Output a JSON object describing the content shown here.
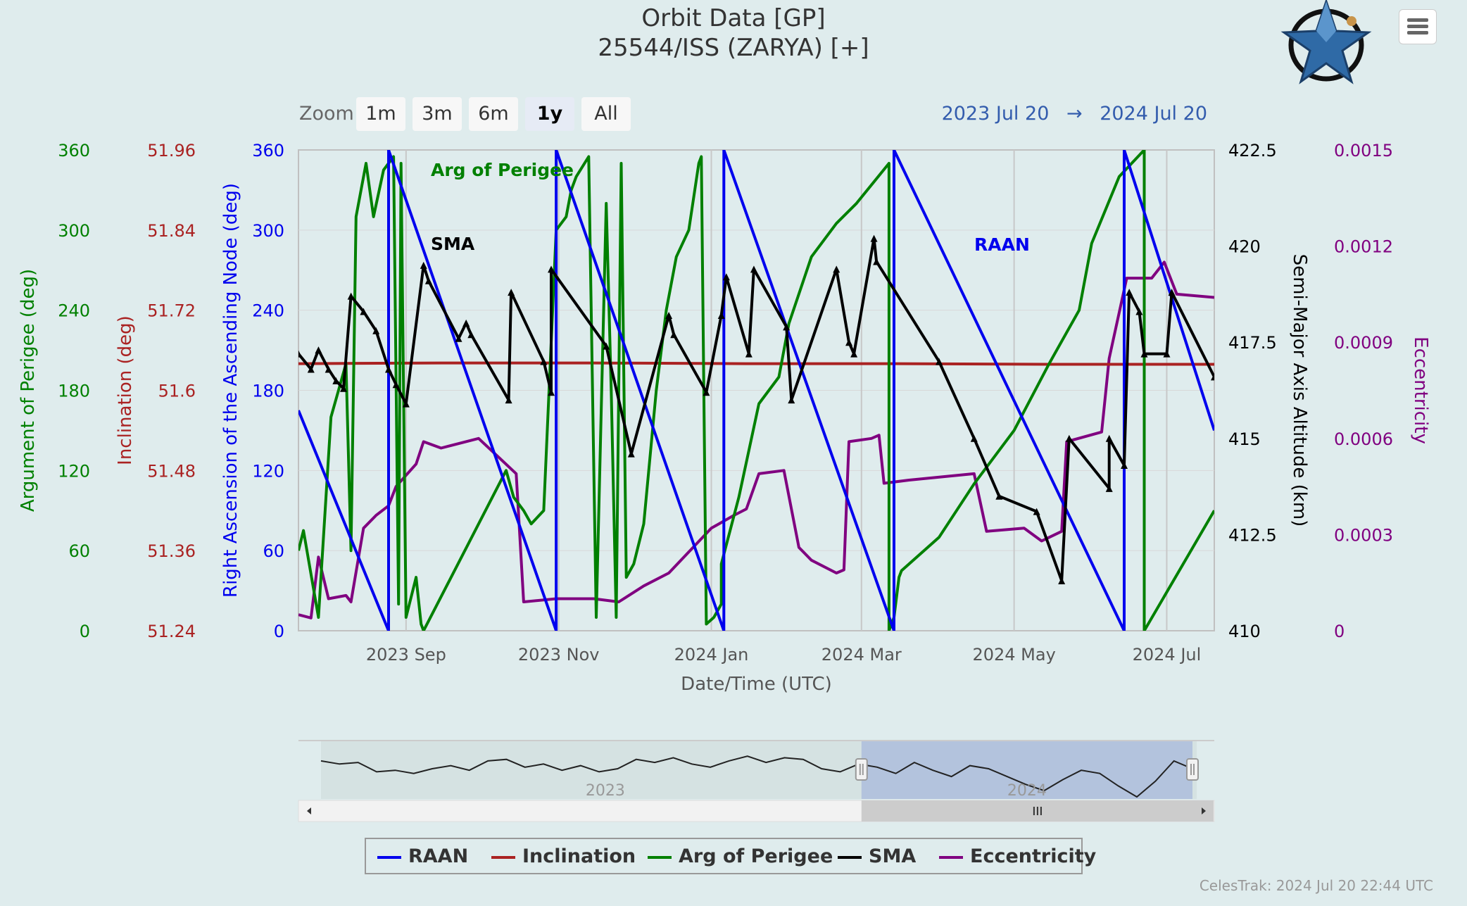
{
  "header": {
    "title": "Orbit Data [GP]",
    "subtitle": "25544/ISS (ZARYA) [+]"
  },
  "logo": {
    "icon": "celestrak-star-logo"
  },
  "menu": {
    "icon": "hamburger-menu-icon"
  },
  "zoom": {
    "label": "Zoom",
    "buttons": [
      "1m",
      "3m",
      "6m",
      "1y",
      "All"
    ],
    "selected": "1y"
  },
  "range": {
    "from": "2023 Jul 20",
    "arrow": "→",
    "to": "2024 Jul 20"
  },
  "credits": "CelesTrak: 2024 Jul 20 22:44 UTC",
  "colors": {
    "raan": "#0000ee",
    "inclination": "#aa2222",
    "arg_perigee": "#008000",
    "sma": "#000000",
    "eccentricity": "#800080",
    "background": "#dfeced",
    "navigator_selection": "#b3c3dd"
  },
  "chart_data": {
    "type": "line",
    "xlabel": "Date/Time (UTC)",
    "x_range": [
      "2023-07-20",
      "2024-07-20"
    ],
    "x_ticks": [
      {
        "date": "2023-09-01",
        "label": "2023 Sep"
      },
      {
        "date": "2023-11-01",
        "label": "2023 Nov"
      },
      {
        "date": "2024-01-01",
        "label": "2024 Jan"
      },
      {
        "date": "2024-03-01",
        "label": "2024 Mar"
      },
      {
        "date": "2024-05-01",
        "label": "2024 May"
      },
      {
        "date": "2024-07-01",
        "label": "2024 Jul"
      }
    ],
    "grid": true,
    "legend_placement": "bottom-center",
    "axes": [
      {
        "id": "argp",
        "label": "Argument of Perigee (deg)",
        "side": "left",
        "min": 0,
        "max": 360,
        "ticks": [
          "0",
          "60",
          "120",
          "180",
          "240",
          "300",
          "360"
        ],
        "color": "#008000"
      },
      {
        "id": "incl",
        "label": "Inclination (deg)",
        "side": "left",
        "min": 51.24,
        "max": 51.96,
        "ticks": [
          "51.24",
          "51.36",
          "51.48",
          "51.6",
          "51.72",
          "51.84",
          "51.96"
        ],
        "color": "#aa2222"
      },
      {
        "id": "raan",
        "label": "Right Ascension of the Ascending Node (deg)",
        "side": "left",
        "min": 0,
        "max": 360,
        "ticks": [
          "0",
          "60",
          "120",
          "180",
          "240",
          "300",
          "360"
        ],
        "color": "#0000ee"
      },
      {
        "id": "sma",
        "label": "Semi-Major Axis Altitude (km)",
        "side": "right",
        "min": 410,
        "max": 422.5,
        "ticks": [
          "410",
          "412.5",
          "415",
          "417.5",
          "420",
          "422.5"
        ],
        "color": "#000000"
      },
      {
        "id": "ecc",
        "label": "Eccentricity",
        "side": "right",
        "min": 0,
        "max": 0.0015,
        "ticks": [
          "0",
          "0.0003",
          "0.0006",
          "0.0009",
          "0.0012",
          "0.0015"
        ],
        "color": "#800080"
      }
    ],
    "annotations": [
      {
        "text": "Arg of Perigee",
        "series": "Arg of Perigee"
      },
      {
        "text": "SMA",
        "series": "SMA"
      },
      {
        "text": "RAAN",
        "series": "RAAN"
      }
    ],
    "series": [
      {
        "name": "RAAN",
        "axis": "raan",
        "color": "#0000ee",
        "x": [
          "2023-07-20",
          "2023-08-25",
          "2023-08-25",
          "2023-10-31",
          "2023-10-31",
          "2024-01-06",
          "2024-01-06",
          "2024-03-14",
          "2024-03-14",
          "2024-06-14",
          "2024-06-14",
          "2024-07-20"
        ],
        "y": [
          165,
          0,
          360,
          0,
          360,
          0,
          360,
          0,
          360,
          0,
          360,
          150
        ]
      },
      {
        "name": "Inclination",
        "axis": "incl",
        "color": "#aa2222",
        "x": [
          "2023-07-20",
          "2023-09-15",
          "2023-11-15",
          "2024-01-15",
          "2024-03-15",
          "2024-05-15",
          "2024-07-20"
        ],
        "y": [
          51.64,
          51.641,
          51.641,
          51.64,
          51.64,
          51.639,
          51.639
        ]
      },
      {
        "name": "Arg of Perigee",
        "axis": "argp",
        "color": "#008000",
        "x": [
          "2023-07-20",
          "2023-07-22",
          "2023-07-28",
          "2023-08-02",
          "2023-08-05",
          "2023-08-08",
          "2023-08-10",
          "2023-08-12",
          "2023-08-14",
          "2023-08-16",
          "2023-08-19",
          "2023-08-23",
          "2023-08-27",
          "2023-08-29",
          "2023-08-30",
          "2023-09-01",
          "2023-09-05",
          "2023-09-07",
          "2023-09-08",
          "2023-10-11",
          "2023-10-14",
          "2023-10-18",
          "2023-10-21",
          "2023-10-26",
          "2023-10-31",
          "2023-11-04",
          "2023-11-06",
          "2023-11-08",
          "2023-11-13",
          "2023-11-16",
          "2023-11-20",
          "2023-11-22",
          "2023-11-24",
          "2023-11-26",
          "2023-11-28",
          "2023-12-01",
          "2023-12-05",
          "2023-12-10",
          "2023-12-14",
          "2023-12-18",
          "2023-12-23",
          "2023-12-27",
          "2023-12-28",
          "2023-12-30",
          "2024-01-02",
          "2024-01-05",
          "2024-01-05",
          "2024-01-12",
          "2024-01-20",
          "2024-01-28",
          "2024-02-01",
          "2024-02-10",
          "2024-02-20",
          "2024-02-28",
          "2024-03-12",
          "2024-03-12",
          "2024-03-14",
          "2024-03-16",
          "2024-03-17",
          "2024-04-01",
          "2024-04-15",
          "2024-05-01",
          "2024-05-15",
          "2024-05-27",
          "2024-06-01",
          "2024-06-12",
          "2024-06-22",
          "2024-06-22",
          "2024-07-20"
        ],
        "y": [
          60,
          75,
          10,
          160,
          180,
          200,
          60,
          310,
          330,
          350,
          310,
          345,
          355,
          20,
          350,
          10,
          40,
          5,
          0,
          120,
          100,
          90,
          80,
          90,
          300,
          310,
          330,
          340,
          355,
          10,
          320,
          180,
          10,
          350,
          40,
          50,
          80,
          180,
          240,
          280,
          300,
          350,
          355,
          5,
          10,
          20,
          50,
          100,
          170,
          190,
          230,
          280,
          305,
          320,
          350,
          0,
          10,
          40,
          45,
          70,
          110,
          150,
          200,
          240,
          290,
          340,
          360,
          0,
          90
        ]
      },
      {
        "name": "SMA",
        "axis": "sma",
        "color": "#000000",
        "x": [
          "2023-07-20",
          "2023-07-25",
          "2023-07-28",
          "2023-08-01",
          "2023-08-04",
          "2023-08-07",
          "2023-08-10",
          "2023-08-15",
          "2023-08-20",
          "2023-08-25",
          "2023-08-28",
          "2023-09-01",
          "2023-09-08",
          "2023-09-10",
          "2023-09-22",
          "2023-09-25",
          "2023-09-27",
          "2023-10-12",
          "2023-10-13",
          "2023-10-26",
          "2023-10-29",
          "2023-10-29",
          "2023-11-20",
          "2023-11-30",
          "2023-12-15",
          "2023-12-17",
          "2023-12-30",
          "2024-01-05",
          "2024-01-07",
          "2024-01-16",
          "2024-01-18",
          "2024-01-31",
          "2024-02-02",
          "2024-02-20",
          "2024-02-25",
          "2024-02-27",
          "2024-03-06",
          "2024-03-07",
          "2024-04-01",
          "2024-04-15",
          "2024-04-25",
          "2024-05-10",
          "2024-05-20",
          "2024-05-23",
          "2024-06-08",
          "2024-06-08",
          "2024-06-14",
          "2024-06-16",
          "2024-06-20",
          "2024-06-22",
          "2024-07-01",
          "2024-07-03",
          "2024-07-20"
        ],
        "y": [
          417.2,
          416.8,
          417.3,
          416.8,
          416.5,
          416.3,
          418.7,
          418.3,
          417.8,
          416.8,
          416.4,
          415.9,
          419.5,
          419.1,
          417.6,
          418,
          417.7,
          416,
          418.8,
          417,
          416.2,
          419.4,
          417.4,
          414.6,
          418.2,
          417.7,
          416.2,
          418.2,
          419.2,
          417.2,
          419.4,
          417.9,
          416,
          419.4,
          417.5,
          417.2,
          420.2,
          419.6,
          417,
          415,
          413.5,
          413.1,
          411.3,
          415,
          413.7,
          415,
          414.3,
          418.8,
          418.3,
          417.2,
          417.2,
          418.8,
          416.6
        ]
      },
      {
        "name": "Eccentricity",
        "axis": "ecc",
        "color": "#800080",
        "x": [
          "2023-07-20",
          "2023-07-25",
          "2023-07-28",
          "2023-08-01",
          "2023-08-08",
          "2023-08-10",
          "2023-08-15",
          "2023-08-20",
          "2023-08-25",
          "2023-08-28",
          "2023-09-05",
          "2023-09-08",
          "2023-09-15",
          "2023-09-30",
          "2023-10-15",
          "2023-10-18",
          "2023-10-31",
          "2023-11-15",
          "2023-11-25",
          "2023-12-05",
          "2023-12-15",
          "2024-01-01",
          "2024-01-10",
          "2024-01-15",
          "2024-01-20",
          "2024-01-30",
          "2024-02-05",
          "2024-02-10",
          "2024-02-20",
          "2024-02-23",
          "2024-02-25",
          "2024-03-05",
          "2024-03-08",
          "2024-03-10",
          "2024-03-20",
          "2024-04-15",
          "2024-04-20",
          "2024-05-05",
          "2024-05-12",
          "2024-05-20",
          "2024-05-22",
          "2024-06-05",
          "2024-06-08",
          "2024-06-15",
          "2024-06-25",
          "2024-06-30",
          "2024-07-05",
          "2024-07-20"
        ],
        "y": [
          5e-05,
          4e-05,
          0.00023,
          0.0001,
          0.00011,
          9e-05,
          0.00032,
          0.00036,
          0.00039,
          0.00045,
          0.00052,
          0.00059,
          0.00057,
          0.0006,
          0.00049,
          9e-05,
          0.0001,
          0.0001,
          9e-05,
          0.00014,
          0.00018,
          0.00032,
          0.00036,
          0.00038,
          0.00049,
          0.0005,
          0.00026,
          0.00022,
          0.00018,
          0.00019,
          0.00059,
          0.0006,
          0.00061,
          0.00046,
          0.00047,
          0.00049,
          0.00031,
          0.00032,
          0.00028,
          0.00031,
          0.00059,
          0.00062,
          0.00085,
          0.0011,
          0.0011,
          0.00115,
          0.00105,
          0.00104
        ]
      }
    ]
  },
  "navigator": {
    "year_labels": [
      "2023",
      "2024"
    ],
    "selection_from": "2024-03-01",
    "selection_to": "2024-07-20",
    "data_from": "2023-07-20",
    "handle_icon": "grip-handle-icon",
    "scroll_left_icon": "arrow-left-icon",
    "scroll_right_icon": "arrow-right-icon",
    "scrollbar_grip_icon": "scrollbar-grip-icon",
    "sma_line": [
      415.8,
      415.6,
      415.7,
      415.1,
      415.2,
      415,
      415.3,
      415.5,
      415.2,
      415.8,
      415.9,
      415.4,
      415.6,
      415.2,
      415.5,
      415.1,
      415.3,
      415.9,
      415.7,
      416,
      415.6,
      415.4,
      415.8,
      416.1,
      415.7,
      416,
      415.9,
      415.3,
      415.1,
      415.6,
      415.4,
      415,
      415.7,
      415.2,
      414.8,
      415.5,
      415.3,
      414.8,
      414.3,
      413.9,
      414.6,
      415.2,
      415,
      414.2,
      413.5,
      414.5,
      415.8,
      415.3
    ]
  }
}
